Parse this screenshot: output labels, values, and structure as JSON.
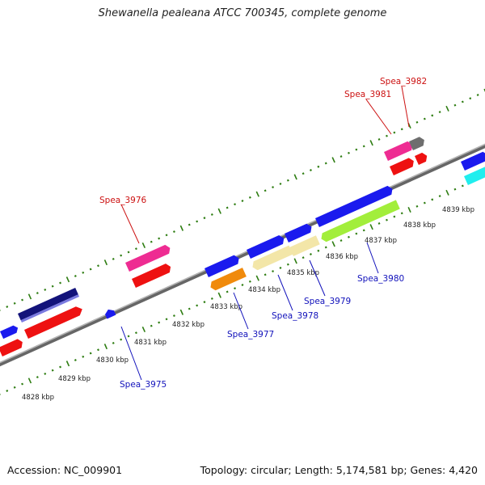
{
  "title": "Shewanella pealeana ATCC 700345, complete genome",
  "footer": {
    "accession": "Accession: NC_009901",
    "topology": "Topology: circular; Length: 5,174,581 bp; Genes: 4,420"
  },
  "colors": {
    "backbone": "#888888",
    "tick": "#2e7d12",
    "forward_label": "#cc1111",
    "reverse_label": "#1111bb"
  },
  "scale_ticks": [
    {
      "text": "4828 kbp"
    },
    {
      "text": "4829 kbp"
    },
    {
      "text": "4830 kbp"
    },
    {
      "text": "4831 kbp"
    },
    {
      "text": "4832 kbp"
    },
    {
      "text": "4833 kbp"
    },
    {
      "text": "4834 kbp"
    },
    {
      "text": "4835 kbp"
    },
    {
      "text": "4836 kbp"
    },
    {
      "text": "4837 kbp"
    },
    {
      "text": "4838 kbp"
    },
    {
      "text": "4839 kbp"
    }
  ],
  "gene_labels": [
    {
      "text": "Spea_3976",
      "strand": "forward"
    },
    {
      "text": "Spea_3981",
      "strand": "forward"
    },
    {
      "text": "Spea_3982",
      "strand": "forward"
    },
    {
      "text": "Spea_3975",
      "strand": "reverse"
    },
    {
      "text": "Spea_3977",
      "strand": "reverse"
    },
    {
      "text": "Spea_3978",
      "strand": "reverse"
    },
    {
      "text": "Spea_3979",
      "strand": "reverse"
    },
    {
      "text": "Spea_3980",
      "strand": "reverse"
    }
  ]
}
